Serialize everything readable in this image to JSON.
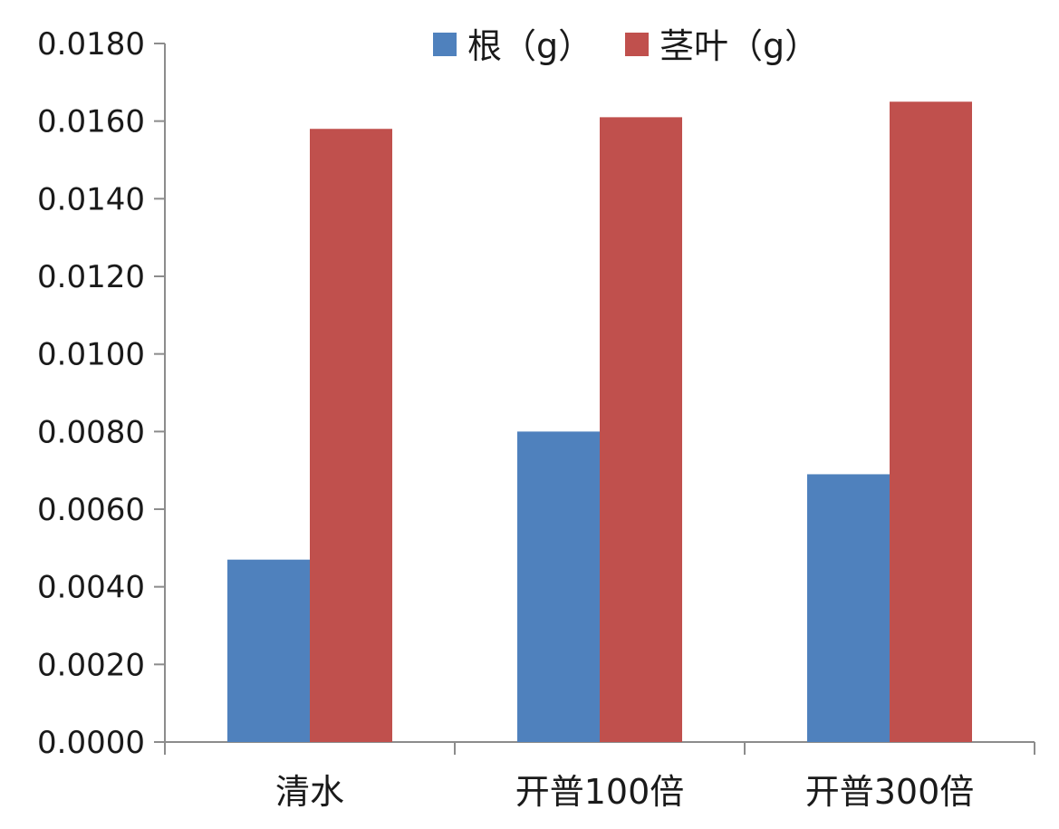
{
  "chart_data": {
    "type": "bar",
    "categories": [
      "清水",
      "开普100倍",
      "开普300倍"
    ],
    "series": [
      {
        "name": "根（g）",
        "color": "#4f81bd",
        "values": [
          0.0047,
          0.008,
          0.0069
        ]
      },
      {
        "name": "茎叶（g）",
        "color": "#c0504d",
        "values": [
          0.0158,
          0.0161,
          0.0165
        ]
      }
    ],
    "yticks": [
      "0.0000",
      "0.0020",
      "0.0040",
      "0.0060",
      "0.0080",
      "0.0100",
      "0.0120",
      "0.0140",
      "0.0160",
      "0.0180"
    ],
    "ylim": [
      0,
      0.018
    ],
    "grid": false,
    "legend_position": "top"
  }
}
